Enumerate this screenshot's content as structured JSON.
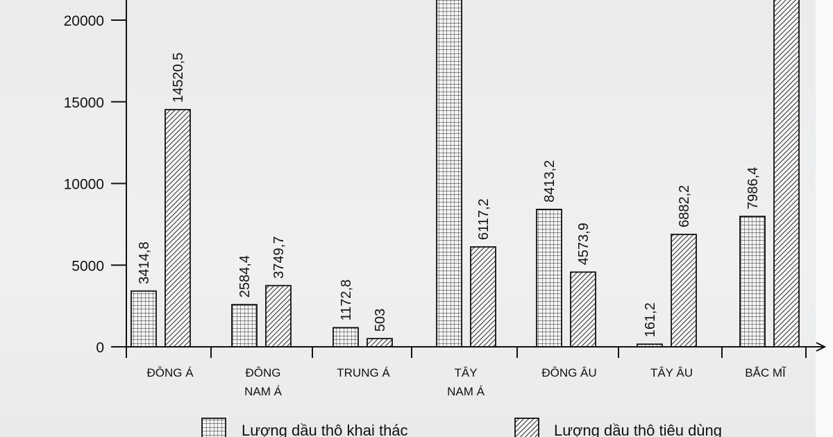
{
  "chart_data": {
    "type": "bar",
    "title": "",
    "xlabel": "",
    "ylabel": "",
    "ylim": [
      0,
      21000
    ],
    "yticks": [
      0,
      5000,
      10000,
      15000,
      20000
    ],
    "grid": false,
    "legend_position": "bottom",
    "categories": [
      "ĐÔNG Á",
      "ĐÔNG NAM Á",
      "TRUNG Á",
      "TÂY NAM Á",
      "ĐÔNG ÂU",
      "TÂY ÂU",
      "BẮC MĨ"
    ],
    "category_lines": [
      [
        "ĐÔNG Á"
      ],
      [
        "ĐÔNG",
        "NAM Á"
      ],
      [
        "TRUNG Á"
      ],
      [
        "TÂY",
        "NAM Á"
      ],
      [
        "ĐÔNG ÂU"
      ],
      [
        "TÂY ÂU"
      ],
      [
        "BẮC MĨ"
      ]
    ],
    "series": [
      {
        "name": "Lượng dầu thô khai thác",
        "pattern": "grid",
        "values": [
          3414.8,
          2584.4,
          1172.8,
          null,
          8413.2,
          161.2,
          7986.4
        ],
        "labels": [
          "3414,8",
          "2584,4",
          "1172,8",
          "",
          "8413,2",
          "161,2",
          "7986,4"
        ],
        "clipped_above_axis": [
          false,
          false,
          false,
          true,
          false,
          false,
          false
        ]
      },
      {
        "name": "Lượng dầu thô tiêu dùng",
        "pattern": "hatch",
        "values": [
          14520.5,
          3749.7,
          503,
          6117.2,
          4573.9,
          6882.2,
          null
        ],
        "labels": [
          "14520,5",
          "3749,7",
          "503",
          "6117,2",
          "4573,9",
          "6882,2",
          ""
        ],
        "clipped_above_axis": [
          false,
          false,
          false,
          false,
          false,
          false,
          true
        ]
      }
    ]
  },
  "axis": {
    "tick_labels": [
      "0",
      "5000",
      "10000",
      "15000",
      "20000"
    ]
  },
  "legend": {
    "items": [
      {
        "label": "Lượng dầu thô khai thác",
        "pattern": "grid"
      },
      {
        "label": "Lượng dầu thô tiêu dùng",
        "pattern": "hatch"
      }
    ]
  }
}
